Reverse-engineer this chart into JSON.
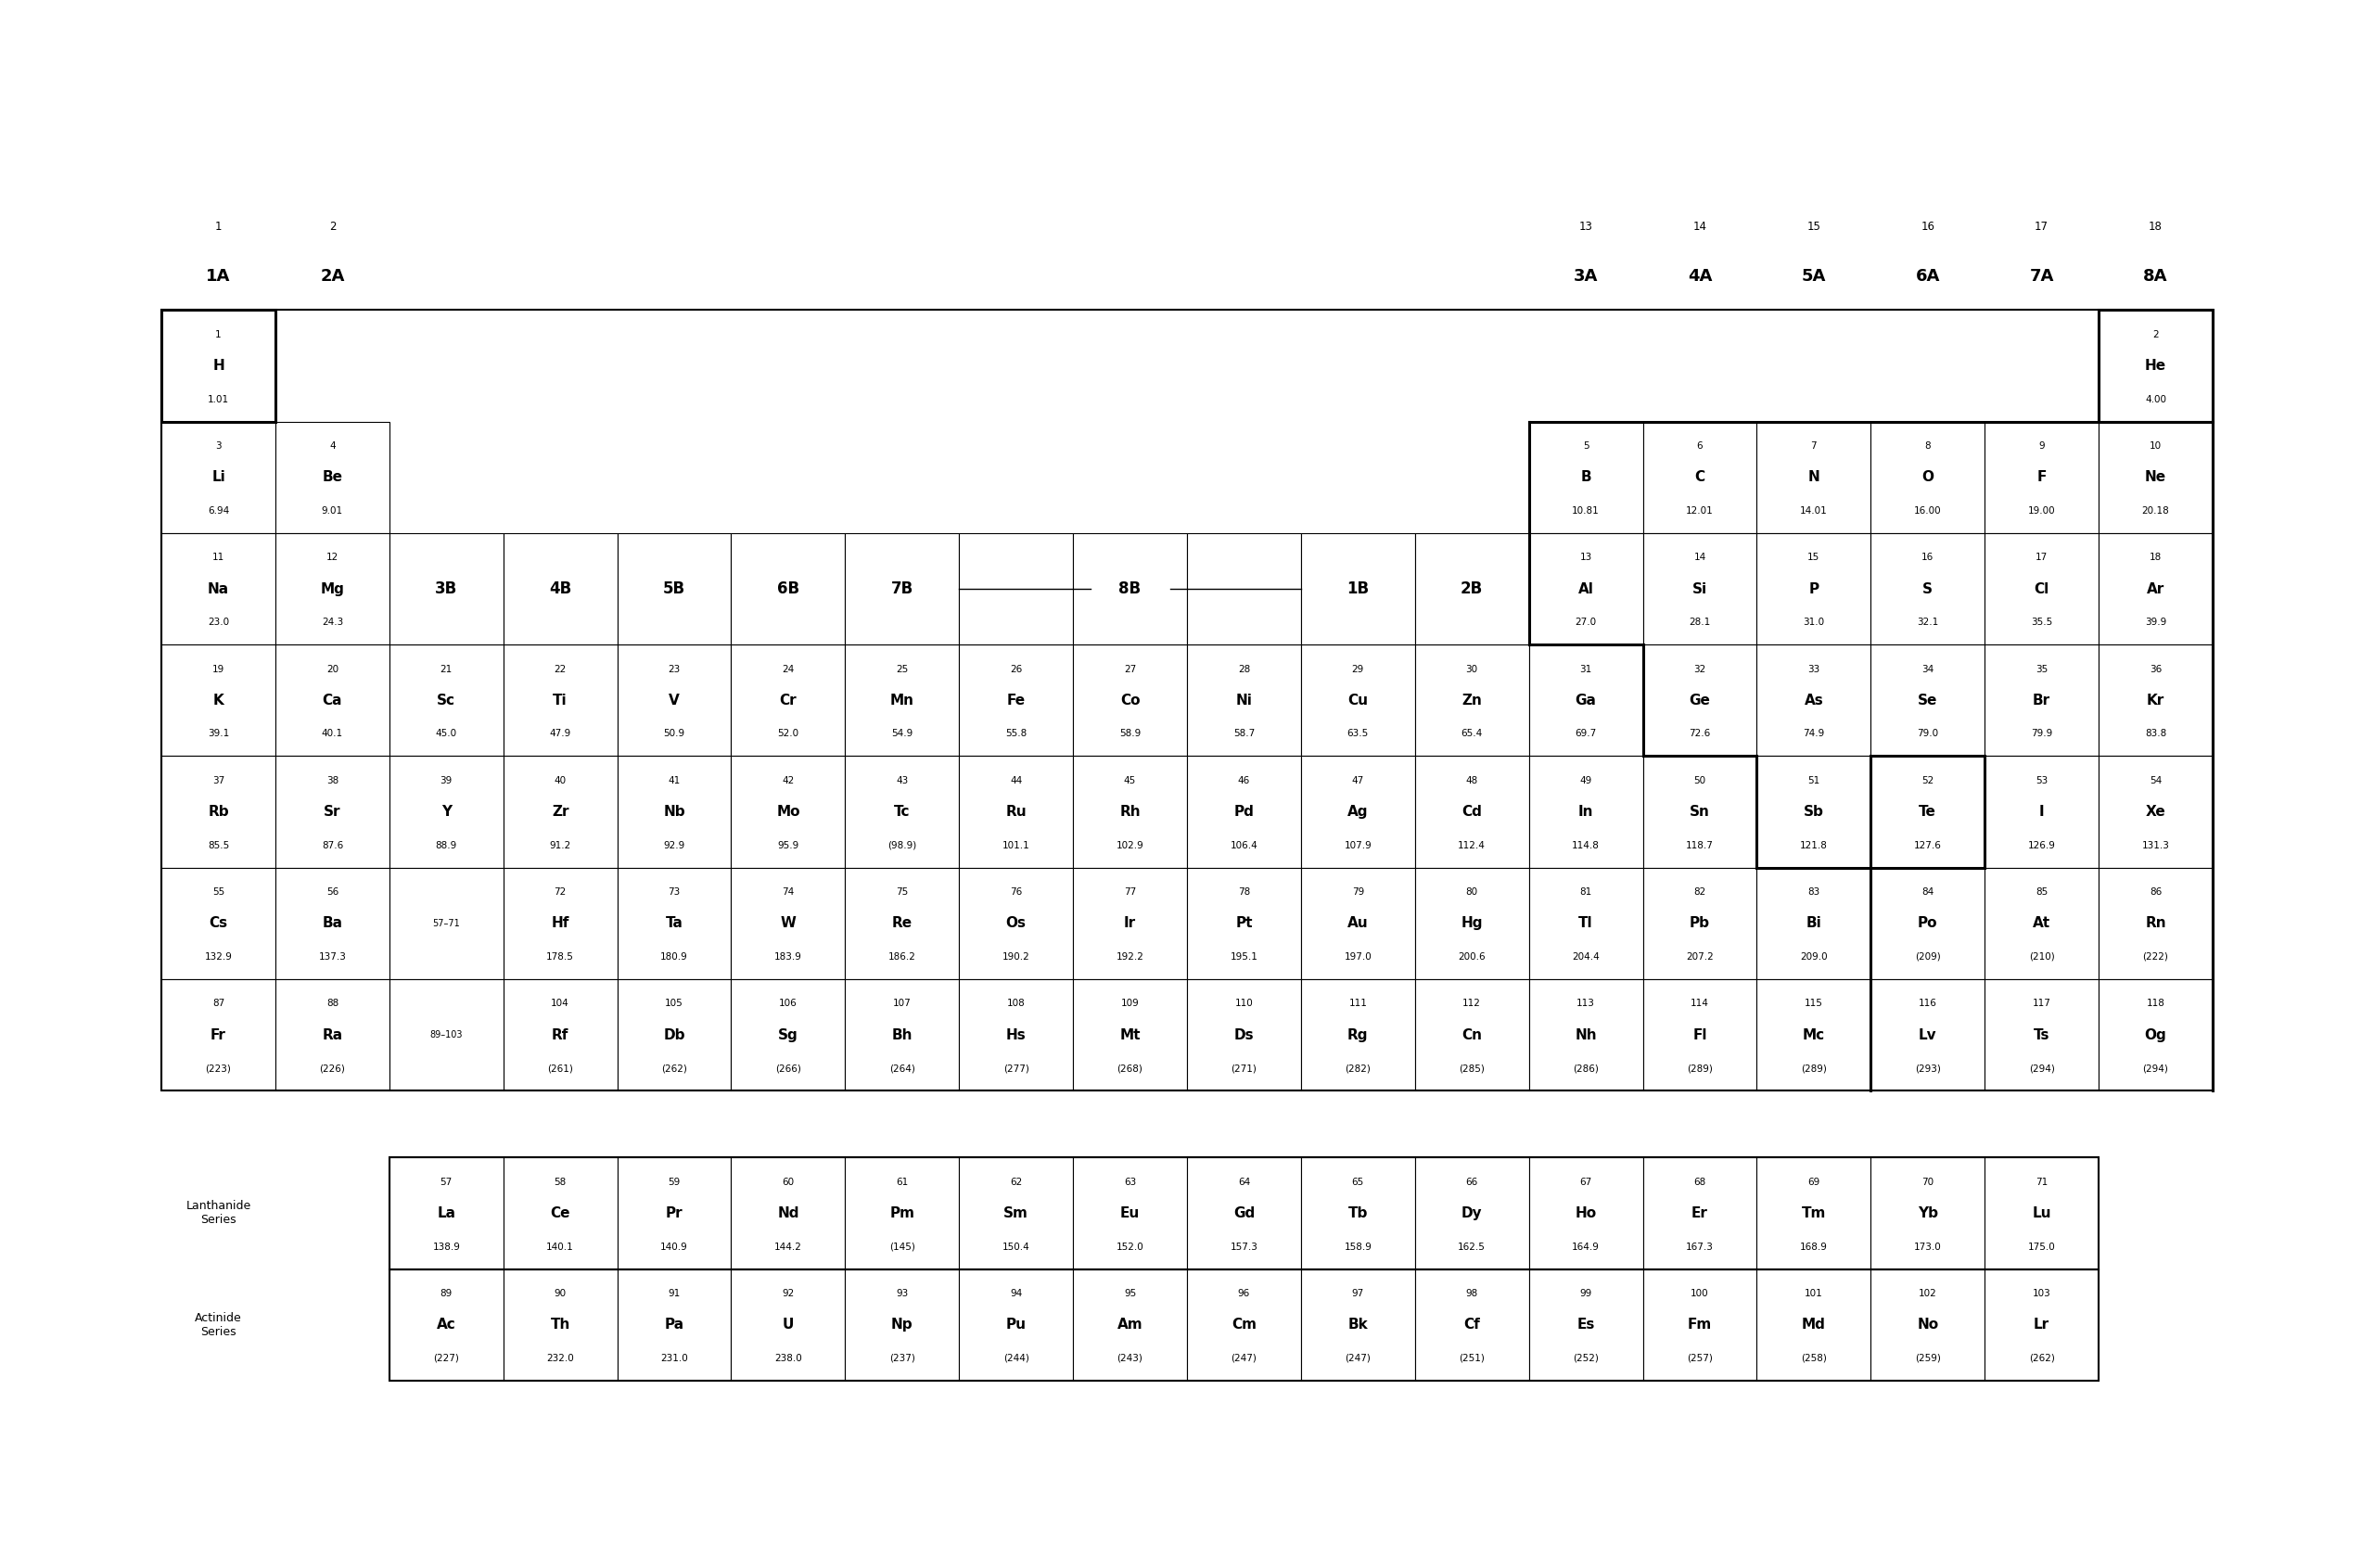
{
  "bg_color": "#ffffff",
  "elements": [
    {
      "num": 1,
      "sym": "H",
      "wt": "1.01",
      "col": 1,
      "row": 1
    },
    {
      "num": 2,
      "sym": "He",
      "wt": "4.00",
      "col": 18,
      "row": 1
    },
    {
      "num": 3,
      "sym": "Li",
      "wt": "6.94",
      "col": 1,
      "row": 2
    },
    {
      "num": 4,
      "sym": "Be",
      "wt": "9.01",
      "col": 2,
      "row": 2
    },
    {
      "num": 5,
      "sym": "B",
      "wt": "10.81",
      "col": 13,
      "row": 2
    },
    {
      "num": 6,
      "sym": "C",
      "wt": "12.01",
      "col": 14,
      "row": 2
    },
    {
      "num": 7,
      "sym": "N",
      "wt": "14.01",
      "col": 15,
      "row": 2
    },
    {
      "num": 8,
      "sym": "O",
      "wt": "16.00",
      "col": 16,
      "row": 2
    },
    {
      "num": 9,
      "sym": "F",
      "wt": "19.00",
      "col": 17,
      "row": 2
    },
    {
      "num": 10,
      "sym": "Ne",
      "wt": "20.18",
      "col": 18,
      "row": 2
    },
    {
      "num": 11,
      "sym": "Na",
      "wt": "23.0",
      "col": 1,
      "row": 3
    },
    {
      "num": 12,
      "sym": "Mg",
      "wt": "24.3",
      "col": 2,
      "row": 3
    },
    {
      "num": 13,
      "sym": "Al",
      "wt": "27.0",
      "col": 13,
      "row": 3
    },
    {
      "num": 14,
      "sym": "Si",
      "wt": "28.1",
      "col": 14,
      "row": 3
    },
    {
      "num": 15,
      "sym": "P",
      "wt": "31.0",
      "col": 15,
      "row": 3
    },
    {
      "num": 16,
      "sym": "S",
      "wt": "32.1",
      "col": 16,
      "row": 3
    },
    {
      "num": 17,
      "sym": "Cl",
      "wt": "35.5",
      "col": 17,
      "row": 3
    },
    {
      "num": 18,
      "sym": "Ar",
      "wt": "39.9",
      "col": 18,
      "row": 3
    },
    {
      "num": 19,
      "sym": "K",
      "wt": "39.1",
      "col": 1,
      "row": 4
    },
    {
      "num": 20,
      "sym": "Ca",
      "wt": "40.1",
      "col": 2,
      "row": 4
    },
    {
      "num": 21,
      "sym": "Sc",
      "wt": "45.0",
      "col": 3,
      "row": 4
    },
    {
      "num": 22,
      "sym": "Ti",
      "wt": "47.9",
      "col": 4,
      "row": 4
    },
    {
      "num": 23,
      "sym": "V",
      "wt": "50.9",
      "col": 5,
      "row": 4
    },
    {
      "num": 24,
      "sym": "Cr",
      "wt": "52.0",
      "col": 6,
      "row": 4
    },
    {
      "num": 25,
      "sym": "Mn",
      "wt": "54.9",
      "col": 7,
      "row": 4
    },
    {
      "num": 26,
      "sym": "Fe",
      "wt": "55.8",
      "col": 8,
      "row": 4
    },
    {
      "num": 27,
      "sym": "Co",
      "wt": "58.9",
      "col": 9,
      "row": 4
    },
    {
      "num": 28,
      "sym": "Ni",
      "wt": "58.7",
      "col": 10,
      "row": 4
    },
    {
      "num": 29,
      "sym": "Cu",
      "wt": "63.5",
      "col": 11,
      "row": 4
    },
    {
      "num": 30,
      "sym": "Zn",
      "wt": "65.4",
      "col": 12,
      "row": 4
    },
    {
      "num": 31,
      "sym": "Ga",
      "wt": "69.7",
      "col": 13,
      "row": 4
    },
    {
      "num": 32,
      "sym": "Ge",
      "wt": "72.6",
      "col": 14,
      "row": 4
    },
    {
      "num": 33,
      "sym": "As",
      "wt": "74.9",
      "col": 15,
      "row": 4
    },
    {
      "num": 34,
      "sym": "Se",
      "wt": "79.0",
      "col": 16,
      "row": 4
    },
    {
      "num": 35,
      "sym": "Br",
      "wt": "79.9",
      "col": 17,
      "row": 4
    },
    {
      "num": 36,
      "sym": "Kr",
      "wt": "83.8",
      "col": 18,
      "row": 4
    },
    {
      "num": 37,
      "sym": "Rb",
      "wt": "85.5",
      "col": 1,
      "row": 5
    },
    {
      "num": 38,
      "sym": "Sr",
      "wt": "87.6",
      "col": 2,
      "row": 5
    },
    {
      "num": 39,
      "sym": "Y",
      "wt": "88.9",
      "col": 3,
      "row": 5
    },
    {
      "num": 40,
      "sym": "Zr",
      "wt": "91.2",
      "col": 4,
      "row": 5
    },
    {
      "num": 41,
      "sym": "Nb",
      "wt": "92.9",
      "col": 5,
      "row": 5
    },
    {
      "num": 42,
      "sym": "Mo",
      "wt": "95.9",
      "col": 6,
      "row": 5
    },
    {
      "num": 43,
      "sym": "Tc",
      "wt": "(98.9)",
      "col": 7,
      "row": 5
    },
    {
      "num": 44,
      "sym": "Ru",
      "wt": "101.1",
      "col": 8,
      "row": 5
    },
    {
      "num": 45,
      "sym": "Rh",
      "wt": "102.9",
      "col": 9,
      "row": 5
    },
    {
      "num": 46,
      "sym": "Pd",
      "wt": "106.4",
      "col": 10,
      "row": 5
    },
    {
      "num": 47,
      "sym": "Ag",
      "wt": "107.9",
      "col": 11,
      "row": 5
    },
    {
      "num": 48,
      "sym": "Cd",
      "wt": "112.4",
      "col": 12,
      "row": 5
    },
    {
      "num": 49,
      "sym": "In",
      "wt": "114.8",
      "col": 13,
      "row": 5
    },
    {
      "num": 50,
      "sym": "Sn",
      "wt": "118.7",
      "col": 14,
      "row": 5
    },
    {
      "num": 51,
      "sym": "Sb",
      "wt": "121.8",
      "col": 15,
      "row": 5
    },
    {
      "num": 52,
      "sym": "Te",
      "wt": "127.6",
      "col": 16,
      "row": 5
    },
    {
      "num": 53,
      "sym": "I",
      "wt": "126.9",
      "col": 17,
      "row": 5
    },
    {
      "num": 54,
      "sym": "Xe",
      "wt": "131.3",
      "col": 18,
      "row": 5
    },
    {
      "num": 55,
      "sym": "Cs",
      "wt": "132.9",
      "col": 1,
      "row": 6
    },
    {
      "num": 56,
      "sym": "Ba",
      "wt": "137.3",
      "col": 2,
      "row": 6
    },
    {
      "num": 72,
      "sym": "Hf",
      "wt": "178.5",
      "col": 4,
      "row": 6
    },
    {
      "num": 73,
      "sym": "Ta",
      "wt": "180.9",
      "col": 5,
      "row": 6
    },
    {
      "num": 74,
      "sym": "W",
      "wt": "183.9",
      "col": 6,
      "row": 6
    },
    {
      "num": 75,
      "sym": "Re",
      "wt": "186.2",
      "col": 7,
      "row": 6
    },
    {
      "num": 76,
      "sym": "Os",
      "wt": "190.2",
      "col": 8,
      "row": 6
    },
    {
      "num": 77,
      "sym": "Ir",
      "wt": "192.2",
      "col": 9,
      "row": 6
    },
    {
      "num": 78,
      "sym": "Pt",
      "wt": "195.1",
      "col": 10,
      "row": 6
    },
    {
      "num": 79,
      "sym": "Au",
      "wt": "197.0",
      "col": 11,
      "row": 6
    },
    {
      "num": 80,
      "sym": "Hg",
      "wt": "200.6",
      "col": 12,
      "row": 6
    },
    {
      "num": 81,
      "sym": "Tl",
      "wt": "204.4",
      "col": 13,
      "row": 6
    },
    {
      "num": 82,
      "sym": "Pb",
      "wt": "207.2",
      "col": 14,
      "row": 6
    },
    {
      "num": 83,
      "sym": "Bi",
      "wt": "209.0",
      "col": 15,
      "row": 6
    },
    {
      "num": 84,
      "sym": "Po",
      "wt": "(209)",
      "col": 16,
      "row": 6
    },
    {
      "num": 85,
      "sym": "At",
      "wt": "(210)",
      "col": 17,
      "row": 6
    },
    {
      "num": 86,
      "sym": "Rn",
      "wt": "(222)",
      "col": 18,
      "row": 6
    },
    {
      "num": 87,
      "sym": "Fr",
      "wt": "(223)",
      "col": 1,
      "row": 7
    },
    {
      "num": 88,
      "sym": "Ra",
      "wt": "(226)",
      "col": 2,
      "row": 7
    },
    {
      "num": 104,
      "sym": "Rf",
      "wt": "(261)",
      "col": 4,
      "row": 7
    },
    {
      "num": 105,
      "sym": "Db",
      "wt": "(262)",
      "col": 5,
      "row": 7
    },
    {
      "num": 106,
      "sym": "Sg",
      "wt": "(266)",
      "col": 6,
      "row": 7
    },
    {
      "num": 107,
      "sym": "Bh",
      "wt": "(264)",
      "col": 7,
      "row": 7
    },
    {
      "num": 108,
      "sym": "Hs",
      "wt": "(277)",
      "col": 8,
      "row": 7
    },
    {
      "num": 109,
      "sym": "Mt",
      "wt": "(268)",
      "col": 9,
      "row": 7
    },
    {
      "num": 110,
      "sym": "Ds",
      "wt": "(271)",
      "col": 10,
      "row": 7
    },
    {
      "num": 111,
      "sym": "Rg",
      "wt": "(282)",
      "col": 11,
      "row": 7
    },
    {
      "num": 112,
      "sym": "Cn",
      "wt": "(285)",
      "col": 12,
      "row": 7
    },
    {
      "num": 113,
      "sym": "Nh",
      "wt": "(286)",
      "col": 13,
      "row": 7
    },
    {
      "num": 114,
      "sym": "Fl",
      "wt": "(289)",
      "col": 14,
      "row": 7
    },
    {
      "num": 115,
      "sym": "Mc",
      "wt": "(289)",
      "col": 15,
      "row": 7
    },
    {
      "num": 116,
      "sym": "Lv",
      "wt": "(293)",
      "col": 16,
      "row": 7
    },
    {
      "num": 117,
      "sym": "Ts",
      "wt": "(294)",
      "col": 17,
      "row": 7
    },
    {
      "num": 118,
      "sym": "Og",
      "wt": "(294)",
      "col": 18,
      "row": 7
    }
  ],
  "lanthanides": [
    {
      "num": 57,
      "sym": "La",
      "wt": "138.9"
    },
    {
      "num": 58,
      "sym": "Ce",
      "wt": "140.1"
    },
    {
      "num": 59,
      "sym": "Pr",
      "wt": "140.9"
    },
    {
      "num": 60,
      "sym": "Nd",
      "wt": "144.2"
    },
    {
      "num": 61,
      "sym": "Pm",
      "wt": "(145)"
    },
    {
      "num": 62,
      "sym": "Sm",
      "wt": "150.4"
    },
    {
      "num": 63,
      "sym": "Eu",
      "wt": "152.0"
    },
    {
      "num": 64,
      "sym": "Gd",
      "wt": "157.3"
    },
    {
      "num": 65,
      "sym": "Tb",
      "wt": "158.9"
    },
    {
      "num": 66,
      "sym": "Dy",
      "wt": "162.5"
    },
    {
      "num": 67,
      "sym": "Ho",
      "wt": "164.9"
    },
    {
      "num": 68,
      "sym": "Er",
      "wt": "167.3"
    },
    {
      "num": 69,
      "sym": "Tm",
      "wt": "168.9"
    },
    {
      "num": 70,
      "sym": "Yb",
      "wt": "173.0"
    },
    {
      "num": 71,
      "sym": "Lu",
      "wt": "175.0"
    }
  ],
  "actinides": [
    {
      "num": 89,
      "sym": "Ac",
      "wt": "(227)"
    },
    {
      "num": 90,
      "sym": "Th",
      "wt": "232.0"
    },
    {
      "num": 91,
      "sym": "Pa",
      "wt": "231.0"
    },
    {
      "num": 92,
      "sym": "U",
      "wt": "238.0"
    },
    {
      "num": 93,
      "sym": "Np",
      "wt": "(237)"
    },
    {
      "num": 94,
      "sym": "Pu",
      "wt": "(244)"
    },
    {
      "num": 95,
      "sym": "Am",
      "wt": "(243)"
    },
    {
      "num": 96,
      "sym": "Cm",
      "wt": "(247)"
    },
    {
      "num": 97,
      "sym": "Bk",
      "wt": "(247)"
    },
    {
      "num": 98,
      "sym": "Cf",
      "wt": "(251)"
    },
    {
      "num": 99,
      "sym": "Es",
      "wt": "(252)"
    },
    {
      "num": 100,
      "sym": "Fm",
      "wt": "(257)"
    },
    {
      "num": 101,
      "sym": "Md",
      "wt": "(258)"
    },
    {
      "num": 102,
      "sym": "No",
      "wt": "(259)"
    },
    {
      "num": 103,
      "sym": "Lr",
      "wt": "(262)"
    }
  ],
  "col1_group_num": "1",
  "col1_group_label": "1A",
  "col2_group_num": "2",
  "col2_group_label": "2A",
  "col18_group_num": "18",
  "col18_group_label": "8A",
  "top_groups": [
    {
      "col": 13,
      "num": "13",
      "label": "3A"
    },
    {
      "col": 14,
      "num": "14",
      "label": "4A"
    },
    {
      "col": 15,
      "num": "15",
      "label": "5A"
    },
    {
      "col": 16,
      "num": "16",
      "label": "6A"
    },
    {
      "col": 17,
      "num": "17",
      "label": "7A"
    }
  ],
  "mid_groups": [
    {
      "col": 3,
      "label": "3B"
    },
    {
      "col": 4,
      "label": "4B"
    },
    {
      "col": 5,
      "label": "5B"
    },
    {
      "col": 6,
      "label": "6B"
    },
    {
      "col": 7,
      "label": "7B"
    },
    {
      "col": 11,
      "label": "1B"
    },
    {
      "col": 12,
      "label": "2B"
    }
  ],
  "8B_label": "8B",
  "8B_cols": [
    8,
    9,
    10
  ],
  "lan_placeholder_row": 6,
  "lan_placeholder_col": 3,
  "lan_placeholder_text": "57–71",
  "act_placeholder_row": 7,
  "act_placeholder_col": 3,
  "act_placeholder_text": "89–103",
  "lanthanide_label": "Lanthanide\nSeries",
  "actinide_label": "Actinide\nSeries"
}
